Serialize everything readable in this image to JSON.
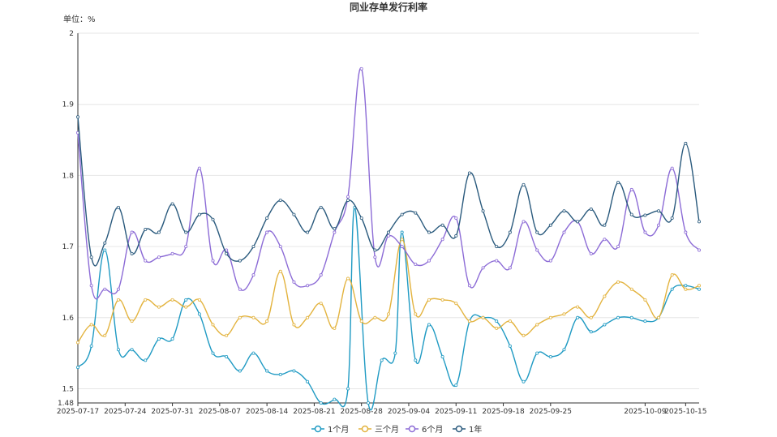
{
  "chart_data": {
    "type": "line",
    "title": "同业存单发行利率",
    "unit_label": "单位：%",
    "ylim": [
      1.48,
      2.0
    ],
    "y_ticks": [
      1.48,
      1.5,
      1.6,
      1.7,
      1.8,
      1.9,
      2
    ],
    "y_tick_labels": [
      "1.48",
      "1.5",
      "1.6",
      "1.7",
      "1.8",
      "1.9",
      "2"
    ],
    "x_start": "2025-07-17",
    "x_end": "2025-10-17",
    "x_ticks": [
      "2025-07-17",
      "2025-07-24",
      "2025-07-31",
      "2025-08-07",
      "2025-08-14",
      "2025-08-21",
      "2025-08-28",
      "2025-09-04",
      "2025-09-11",
      "2025-09-18",
      "2025-09-25",
      "2025-10-09",
      "2025-10-15"
    ],
    "grid": true,
    "legend_position": "bottom",
    "series": [
      {
        "name": "1个月",
        "color": "#1f9ac3",
        "points": [
          [
            "2025-07-17",
            1.53
          ],
          [
            "2025-07-19",
            1.56
          ],
          [
            "2025-07-21",
            1.695
          ],
          [
            "2025-07-23",
            1.555
          ],
          [
            "2025-07-25",
            1.555
          ],
          [
            "2025-07-27",
            1.54
          ],
          [
            "2025-07-29",
            1.57
          ],
          [
            "2025-07-31",
            1.57
          ],
          [
            "2025-08-02",
            1.625
          ],
          [
            "2025-08-04",
            1.605
          ],
          [
            "2025-08-06",
            1.55
          ],
          [
            "2025-08-08",
            1.545
          ],
          [
            "2025-08-10",
            1.525
          ],
          [
            "2025-08-12",
            1.55
          ],
          [
            "2025-08-14",
            1.525
          ],
          [
            "2025-08-16",
            1.52
          ],
          [
            "2025-08-18",
            1.525
          ],
          [
            "2025-08-20",
            1.51
          ],
          [
            "2025-08-22",
            1.48
          ],
          [
            "2025-08-24",
            1.485
          ],
          [
            "2025-08-26",
            1.5
          ],
          [
            "2025-08-27",
            1.755
          ],
          [
            "2025-08-29",
            1.48
          ],
          [
            "2025-08-31",
            1.54
          ],
          [
            "2025-09-02",
            1.55
          ],
          [
            "2025-09-03",
            1.72
          ],
          [
            "2025-09-05",
            1.54
          ],
          [
            "2025-09-07",
            1.59
          ],
          [
            "2025-09-09",
            1.545
          ],
          [
            "2025-09-11",
            1.505
          ],
          [
            "2025-09-13",
            1.595
          ],
          [
            "2025-09-15",
            1.6
          ],
          [
            "2025-09-17",
            1.595
          ],
          [
            "2025-09-19",
            1.56
          ],
          [
            "2025-09-21",
            1.51
          ],
          [
            "2025-09-23",
            1.55
          ],
          [
            "2025-09-25",
            1.545
          ],
          [
            "2025-09-27",
            1.555
          ],
          [
            "2025-09-29",
            1.6
          ],
          [
            "2025-10-01",
            1.58
          ],
          [
            "2025-10-03",
            1.59
          ],
          [
            "2025-10-05",
            1.6
          ],
          [
            "2025-10-07",
            1.6
          ],
          [
            "2025-10-09",
            1.595
          ],
          [
            "2025-10-11",
            1.6
          ],
          [
            "2025-10-13",
            1.64
          ],
          [
            "2025-10-15",
            1.645
          ],
          [
            "2025-10-17",
            1.64
          ]
        ]
      },
      {
        "name": "三个月",
        "color": "#e3b33e",
        "points": [
          [
            "2025-07-17",
            1.565
          ],
          [
            "2025-07-19",
            1.59
          ],
          [
            "2025-07-21",
            1.575
          ],
          [
            "2025-07-23",
            1.625
          ],
          [
            "2025-07-25",
            1.595
          ],
          [
            "2025-07-27",
            1.625
          ],
          [
            "2025-07-29",
            1.615
          ],
          [
            "2025-07-31",
            1.625
          ],
          [
            "2025-08-02",
            1.615
          ],
          [
            "2025-08-04",
            1.625
          ],
          [
            "2025-08-06",
            1.59
          ],
          [
            "2025-08-08",
            1.575
          ],
          [
            "2025-08-10",
            1.6
          ],
          [
            "2025-08-12",
            1.6
          ],
          [
            "2025-08-14",
            1.595
          ],
          [
            "2025-08-16",
            1.665
          ],
          [
            "2025-08-18",
            1.59
          ],
          [
            "2025-08-20",
            1.6
          ],
          [
            "2025-08-22",
            1.62
          ],
          [
            "2025-08-24",
            1.585
          ],
          [
            "2025-08-26",
            1.655
          ],
          [
            "2025-08-28",
            1.595
          ],
          [
            "2025-08-30",
            1.6
          ],
          [
            "2025-09-01",
            1.605
          ],
          [
            "2025-09-03",
            1.71
          ],
          [
            "2025-09-05",
            1.605
          ],
          [
            "2025-09-07",
            1.625
          ],
          [
            "2025-09-09",
            1.625
          ],
          [
            "2025-09-11",
            1.62
          ],
          [
            "2025-09-13",
            1.595
          ],
          [
            "2025-09-15",
            1.6
          ],
          [
            "2025-09-17",
            1.585
          ],
          [
            "2025-09-19",
            1.595
          ],
          [
            "2025-09-21",
            1.575
          ],
          [
            "2025-09-23",
            1.59
          ],
          [
            "2025-09-25",
            1.6
          ],
          [
            "2025-09-27",
            1.605
          ],
          [
            "2025-09-29",
            1.615
          ],
          [
            "2025-10-01",
            1.6
          ],
          [
            "2025-10-03",
            1.63
          ],
          [
            "2025-10-05",
            1.65
          ],
          [
            "2025-10-07",
            1.64
          ],
          [
            "2025-10-09",
            1.625
          ],
          [
            "2025-10-11",
            1.6
          ],
          [
            "2025-10-13",
            1.66
          ],
          [
            "2025-10-15",
            1.64
          ],
          [
            "2025-10-17",
            1.645
          ]
        ]
      },
      {
        "name": "6个月",
        "color": "#8c6bd6",
        "points": [
          [
            "2025-07-17",
            1.86
          ],
          [
            "2025-07-19",
            1.645
          ],
          [
            "2025-07-21",
            1.64
          ],
          [
            "2025-07-23",
            1.64
          ],
          [
            "2025-07-25",
            1.72
          ],
          [
            "2025-07-27",
            1.68
          ],
          [
            "2025-07-29",
            1.685
          ],
          [
            "2025-07-31",
            1.69
          ],
          [
            "2025-08-02",
            1.7
          ],
          [
            "2025-08-04",
            1.81
          ],
          [
            "2025-08-06",
            1.68
          ],
          [
            "2025-08-08",
            1.695
          ],
          [
            "2025-08-10",
            1.64
          ],
          [
            "2025-08-12",
            1.66
          ],
          [
            "2025-08-14",
            1.72
          ],
          [
            "2025-08-16",
            1.7
          ],
          [
            "2025-08-18",
            1.65
          ],
          [
            "2025-08-20",
            1.645
          ],
          [
            "2025-08-22",
            1.66
          ],
          [
            "2025-08-24",
            1.72
          ],
          [
            "2025-08-26",
            1.77
          ],
          [
            "2025-08-28",
            1.95
          ],
          [
            "2025-08-30",
            1.685
          ],
          [
            "2025-09-01",
            1.715
          ],
          [
            "2025-09-03",
            1.7
          ],
          [
            "2025-09-05",
            1.675
          ],
          [
            "2025-09-07",
            1.68
          ],
          [
            "2025-09-09",
            1.71
          ],
          [
            "2025-09-11",
            1.74
          ],
          [
            "2025-09-13",
            1.645
          ],
          [
            "2025-09-15",
            1.67
          ],
          [
            "2025-09-17",
            1.68
          ],
          [
            "2025-09-19",
            1.67
          ],
          [
            "2025-09-21",
            1.735
          ],
          [
            "2025-09-23",
            1.695
          ],
          [
            "2025-09-25",
            1.68
          ],
          [
            "2025-09-27",
            1.72
          ],
          [
            "2025-09-29",
            1.735
          ],
          [
            "2025-10-01",
            1.69
          ],
          [
            "2025-10-03",
            1.71
          ],
          [
            "2025-10-05",
            1.7
          ],
          [
            "2025-10-07",
            1.78
          ],
          [
            "2025-10-09",
            1.72
          ],
          [
            "2025-10-11",
            1.73
          ],
          [
            "2025-10-13",
            1.81
          ],
          [
            "2025-10-15",
            1.72
          ],
          [
            "2025-10-17",
            1.695
          ]
        ]
      },
      {
        "name": "1年",
        "color": "#2a5a7d",
        "points": [
          [
            "2025-07-17",
            1.8822
          ],
          [
            "2025-07-19",
            1.685
          ],
          [
            "2025-07-21",
            1.705
          ],
          [
            "2025-07-23",
            1.755
          ],
          [
            "2025-07-25",
            1.69
          ],
          [
            "2025-07-27",
            1.724
          ],
          [
            "2025-07-29",
            1.72
          ],
          [
            "2025-07-31",
            1.76
          ],
          [
            "2025-08-02",
            1.72
          ],
          [
            "2025-08-04",
            1.745
          ],
          [
            "2025-08-06",
            1.738
          ],
          [
            "2025-08-08",
            1.69
          ],
          [
            "2025-08-10",
            1.68
          ],
          [
            "2025-08-12",
            1.7
          ],
          [
            "2025-08-14",
            1.74
          ],
          [
            "2025-08-16",
            1.765
          ],
          [
            "2025-08-18",
            1.745
          ],
          [
            "2025-08-20",
            1.72
          ],
          [
            "2025-08-22",
            1.755
          ],
          [
            "2025-08-24",
            1.725
          ],
          [
            "2025-08-26",
            1.765
          ],
          [
            "2025-08-28",
            1.74
          ],
          [
            "2025-08-30",
            1.695
          ],
          [
            "2025-09-01",
            1.72
          ],
          [
            "2025-09-03",
            1.745
          ],
          [
            "2025-09-05",
            1.7473
          ],
          [
            "2025-09-07",
            1.72
          ],
          [
            "2025-09-09",
            1.73
          ],
          [
            "2025-09-11",
            1.715
          ],
          [
            "2025-09-13",
            1.8033
          ],
          [
            "2025-09-15",
            1.75
          ],
          [
            "2025-09-17",
            1.7
          ],
          [
            "2025-09-19",
            1.72
          ],
          [
            "2025-09-21",
            1.7869
          ],
          [
            "2025-09-23",
            1.72
          ],
          [
            "2025-09-25",
            1.73
          ],
          [
            "2025-09-27",
            1.75
          ],
          [
            "2025-09-29",
            1.735
          ],
          [
            "2025-10-01",
            1.7525
          ],
          [
            "2025-10-03",
            1.73
          ],
          [
            "2025-10-05",
            1.79
          ],
          [
            "2025-10-07",
            1.745
          ],
          [
            "2025-10-09",
            1.744
          ],
          [
            "2025-10-11",
            1.75
          ],
          [
            "2025-10-13",
            1.74
          ],
          [
            "2025-10-15",
            1.845
          ],
          [
            "2025-10-17",
            1.735
          ]
        ]
      }
    ],
    "annotations": []
  },
  "legend": [
    "1个月",
    "三个月",
    "6个月",
    "1年"
  ]
}
